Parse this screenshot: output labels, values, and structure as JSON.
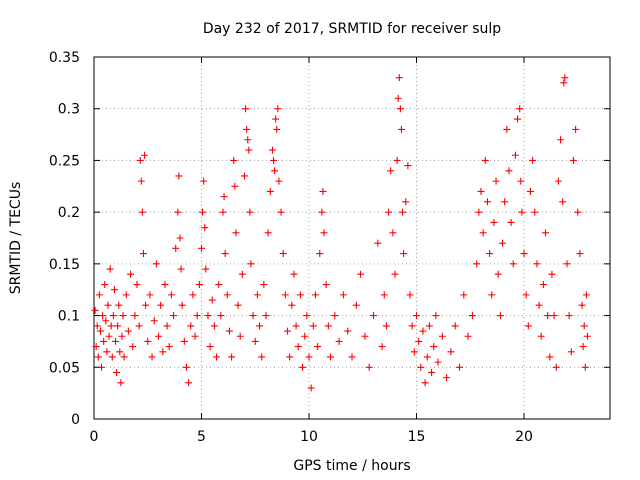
{
  "chart_data": {
    "type": "scatter",
    "title": "Day 232 of 2017, SRMTID for receiver sulp",
    "xlabel": "GPS time / hours",
    "ylabel": "SRMTID / TECUs",
    "xlim": [
      0,
      24
    ],
    "ylim": [
      0,
      0.35
    ],
    "x_ticks": [
      0,
      5,
      10,
      15,
      20
    ],
    "x_tick_labels": [
      "0",
      "5",
      "10",
      "15",
      "20"
    ],
    "y_ticks": [
      0,
      0.05,
      0.1,
      0.15,
      0.2,
      0.25,
      0.3,
      0.35
    ],
    "y_tick_labels": [
      "0",
      "0.05",
      "0.1",
      "0.15",
      "0.2",
      "0.25",
      "0.3",
      "0.35"
    ],
    "grid": true,
    "marker": "+",
    "marker_color": "#ff0000",
    "series": [
      {
        "name": "SRMTID",
        "points": [
          [
            0.05,
            0.105
          ],
          [
            0.1,
            0.07
          ],
          [
            0.15,
            0.09
          ],
          [
            0.2,
            0.06
          ],
          [
            0.25,
            0.12
          ],
          [
            0.3,
            0.085
          ],
          [
            0.35,
            0.05
          ],
          [
            0.4,
            0.1
          ],
          [
            0.45,
            0.075
          ],
          [
            0.5,
            0.13
          ],
          [
            0.55,
            0.095
          ],
          [
            0.6,
            0.065
          ],
          [
            0.65,
            0.11
          ],
          [
            0.7,
            0.08
          ],
          [
            0.75,
            0.145
          ],
          [
            0.8,
            0.09
          ],
          [
            0.85,
            0.06
          ],
          [
            0.9,
            0.1
          ],
          [
            0.95,
            0.125
          ],
          [
            1.0,
            0.075
          ],
          [
            1.05,
            0.045
          ],
          [
            1.1,
            0.09
          ],
          [
            1.15,
            0.11
          ],
          [
            1.2,
            0.065
          ],
          [
            1.25,
            0.035
          ],
          [
            1.3,
            0.08
          ],
          [
            1.35,
            0.1
          ],
          [
            1.4,
            0.06
          ],
          [
            1.5,
            0.12
          ],
          [
            1.6,
            0.085
          ],
          [
            1.7,
            0.14
          ],
          [
            1.8,
            0.07
          ],
          [
            1.9,
            0.1
          ],
          [
            2.0,
            0.13
          ],
          [
            2.1,
            0.09
          ],
          [
            2.15,
            0.25
          ],
          [
            2.2,
            0.23
          ],
          [
            2.25,
            0.2
          ],
          [
            2.3,
            0.16
          ],
          [
            2.35,
            0.255
          ],
          [
            2.4,
            0.11
          ],
          [
            2.5,
            0.075
          ],
          [
            2.6,
            0.12
          ],
          [
            2.7,
            0.06
          ],
          [
            2.8,
            0.095
          ],
          [
            2.9,
            0.15
          ],
          [
            3.0,
            0.08
          ],
          [
            3.1,
            0.11
          ],
          [
            3.2,
            0.065
          ],
          [
            3.3,
            0.13
          ],
          [
            3.4,
            0.09
          ],
          [
            3.5,
            0.07
          ],
          [
            3.6,
            0.12
          ],
          [
            3.7,
            0.1
          ],
          [
            3.8,
            0.165
          ],
          [
            3.9,
            0.2
          ],
          [
            3.95,
            0.235
          ],
          [
            4.0,
            0.175
          ],
          [
            4.05,
            0.145
          ],
          [
            4.1,
            0.11
          ],
          [
            4.2,
            0.075
          ],
          [
            4.3,
            0.05
          ],
          [
            4.4,
            0.035
          ],
          [
            4.5,
            0.09
          ],
          [
            4.6,
            0.12
          ],
          [
            4.7,
            0.08
          ],
          [
            4.8,
            0.1
          ],
          [
            4.9,
            0.13
          ],
          [
            5.0,
            0.165
          ],
          [
            5.05,
            0.2
          ],
          [
            5.1,
            0.23
          ],
          [
            5.15,
            0.185
          ],
          [
            5.2,
            0.145
          ],
          [
            5.3,
            0.1
          ],
          [
            5.4,
            0.07
          ],
          [
            5.5,
            0.115
          ],
          [
            5.6,
            0.09
          ],
          [
            5.7,
            0.06
          ],
          [
            5.8,
            0.13
          ],
          [
            5.9,
            0.1
          ],
          [
            6.0,
            0.2
          ],
          [
            6.05,
            0.215
          ],
          [
            6.1,
            0.16
          ],
          [
            6.2,
            0.12
          ],
          [
            6.3,
            0.085
          ],
          [
            6.4,
            0.06
          ],
          [
            6.5,
            0.25
          ],
          [
            6.55,
            0.225
          ],
          [
            6.6,
            0.18
          ],
          [
            6.7,
            0.11
          ],
          [
            6.8,
            0.08
          ],
          [
            6.9,
            0.14
          ],
          [
            7.0,
            0.235
          ],
          [
            7.05,
            0.3
          ],
          [
            7.1,
            0.28
          ],
          [
            7.15,
            0.27
          ],
          [
            7.2,
            0.26
          ],
          [
            7.25,
            0.2
          ],
          [
            7.3,
            0.15
          ],
          [
            7.4,
            0.1
          ],
          [
            7.5,
            0.075
          ],
          [
            7.6,
            0.12
          ],
          [
            7.7,
            0.09
          ],
          [
            7.8,
            0.06
          ],
          [
            7.9,
            0.13
          ],
          [
            8.0,
            0.1
          ],
          [
            8.1,
            0.18
          ],
          [
            8.2,
            0.22
          ],
          [
            8.3,
            0.26
          ],
          [
            8.35,
            0.25
          ],
          [
            8.4,
            0.24
          ],
          [
            8.45,
            0.29
          ],
          [
            8.5,
            0.28
          ],
          [
            8.55,
            0.3
          ],
          [
            8.6,
            0.23
          ],
          [
            8.7,
            0.2
          ],
          [
            8.8,
            0.16
          ],
          [
            8.9,
            0.12
          ],
          [
            9.0,
            0.085
          ],
          [
            9.1,
            0.06
          ],
          [
            9.2,
            0.11
          ],
          [
            9.3,
            0.14
          ],
          [
            9.4,
            0.09
          ],
          [
            9.5,
            0.07
          ],
          [
            9.6,
            0.12
          ],
          [
            9.7,
            0.05
          ],
          [
            9.8,
            0.08
          ],
          [
            9.9,
            0.1
          ],
          [
            10.0,
            0.06
          ],
          [
            10.1,
            0.03
          ],
          [
            10.2,
            0.09
          ],
          [
            10.3,
            0.12
          ],
          [
            10.4,
            0.07
          ],
          [
            10.5,
            0.16
          ],
          [
            10.6,
            0.2
          ],
          [
            10.65,
            0.22
          ],
          [
            10.7,
            0.18
          ],
          [
            10.8,
            0.13
          ],
          [
            10.9,
            0.09
          ],
          [
            11.0,
            0.06
          ],
          [
            11.2,
            0.1
          ],
          [
            11.4,
            0.075
          ],
          [
            11.6,
            0.12
          ],
          [
            11.8,
            0.085
          ],
          [
            12.0,
            0.06
          ],
          [
            12.2,
            0.11
          ],
          [
            12.4,
            0.14
          ],
          [
            12.6,
            0.08
          ],
          [
            12.8,
            0.05
          ],
          [
            13.0,
            0.1
          ],
          [
            13.2,
            0.17
          ],
          [
            13.4,
            0.07
          ],
          [
            13.5,
            0.12
          ],
          [
            13.6,
            0.09
          ],
          [
            13.7,
            0.2
          ],
          [
            13.8,
            0.24
          ],
          [
            13.9,
            0.18
          ],
          [
            14.0,
            0.14
          ],
          [
            14.1,
            0.25
          ],
          [
            14.15,
            0.31
          ],
          [
            14.2,
            0.33
          ],
          [
            14.25,
            0.3
          ],
          [
            14.3,
            0.28
          ],
          [
            14.35,
            0.2
          ],
          [
            14.4,
            0.16
          ],
          [
            14.5,
            0.21
          ],
          [
            14.6,
            0.245
          ],
          [
            14.7,
            0.12
          ],
          [
            14.8,
            0.09
          ],
          [
            14.9,
            0.065
          ],
          [
            15.0,
            0.1
          ],
          [
            15.1,
            0.075
          ],
          [
            15.2,
            0.05
          ],
          [
            15.3,
            0.085
          ],
          [
            15.4,
            0.035
          ],
          [
            15.5,
            0.06
          ],
          [
            15.6,
            0.09
          ],
          [
            15.7,
            0.045
          ],
          [
            15.8,
            0.07
          ],
          [
            15.9,
            0.1
          ],
          [
            16.0,
            0.055
          ],
          [
            16.2,
            0.08
          ],
          [
            16.4,
            0.04
          ],
          [
            16.6,
            0.065
          ],
          [
            16.8,
            0.09
          ],
          [
            17.0,
            0.05
          ],
          [
            17.2,
            0.12
          ],
          [
            17.4,
            0.08
          ],
          [
            17.6,
            0.1
          ],
          [
            17.8,
            0.15
          ],
          [
            17.9,
            0.2
          ],
          [
            18.0,
            0.22
          ],
          [
            18.1,
            0.18
          ],
          [
            18.2,
            0.25
          ],
          [
            18.3,
            0.21
          ],
          [
            18.4,
            0.16
          ],
          [
            18.5,
            0.12
          ],
          [
            18.6,
            0.19
          ],
          [
            18.7,
            0.23
          ],
          [
            18.8,
            0.14
          ],
          [
            18.9,
            0.1
          ],
          [
            19.0,
            0.17
          ],
          [
            19.1,
            0.21
          ],
          [
            19.2,
            0.28
          ],
          [
            19.3,
            0.24
          ],
          [
            19.4,
            0.19
          ],
          [
            19.5,
            0.15
          ],
          [
            19.6,
            0.255
          ],
          [
            19.7,
            0.29
          ],
          [
            19.8,
            0.3
          ],
          [
            19.85,
            0.23
          ],
          [
            19.9,
            0.2
          ],
          [
            20.0,
            0.16
          ],
          [
            20.1,
            0.12
          ],
          [
            20.2,
            0.09
          ],
          [
            20.3,
            0.22
          ],
          [
            20.4,
            0.25
          ],
          [
            20.5,
            0.2
          ],
          [
            20.6,
            0.15
          ],
          [
            20.7,
            0.11
          ],
          [
            20.8,
            0.08
          ],
          [
            20.9,
            0.13
          ],
          [
            21.0,
            0.18
          ],
          [
            21.1,
            0.1
          ],
          [
            21.2,
            0.06
          ],
          [
            21.3,
            0.14
          ],
          [
            21.4,
            0.1
          ],
          [
            21.5,
            0.05
          ],
          [
            21.6,
            0.23
          ],
          [
            21.7,
            0.27
          ],
          [
            21.8,
            0.21
          ],
          [
            21.85,
            0.325
          ],
          [
            21.9,
            0.33
          ],
          [
            22.0,
            0.15
          ],
          [
            22.1,
            0.1
          ],
          [
            22.2,
            0.065
          ],
          [
            22.3,
            0.25
          ],
          [
            22.4,
            0.28
          ],
          [
            22.5,
            0.2
          ],
          [
            22.6,
            0.16
          ],
          [
            22.7,
            0.11
          ],
          [
            22.75,
            0.07
          ],
          [
            22.8,
            0.09
          ],
          [
            22.85,
            0.05
          ],
          [
            22.9,
            0.12
          ],
          [
            22.95,
            0.08
          ]
        ]
      }
    ]
  }
}
